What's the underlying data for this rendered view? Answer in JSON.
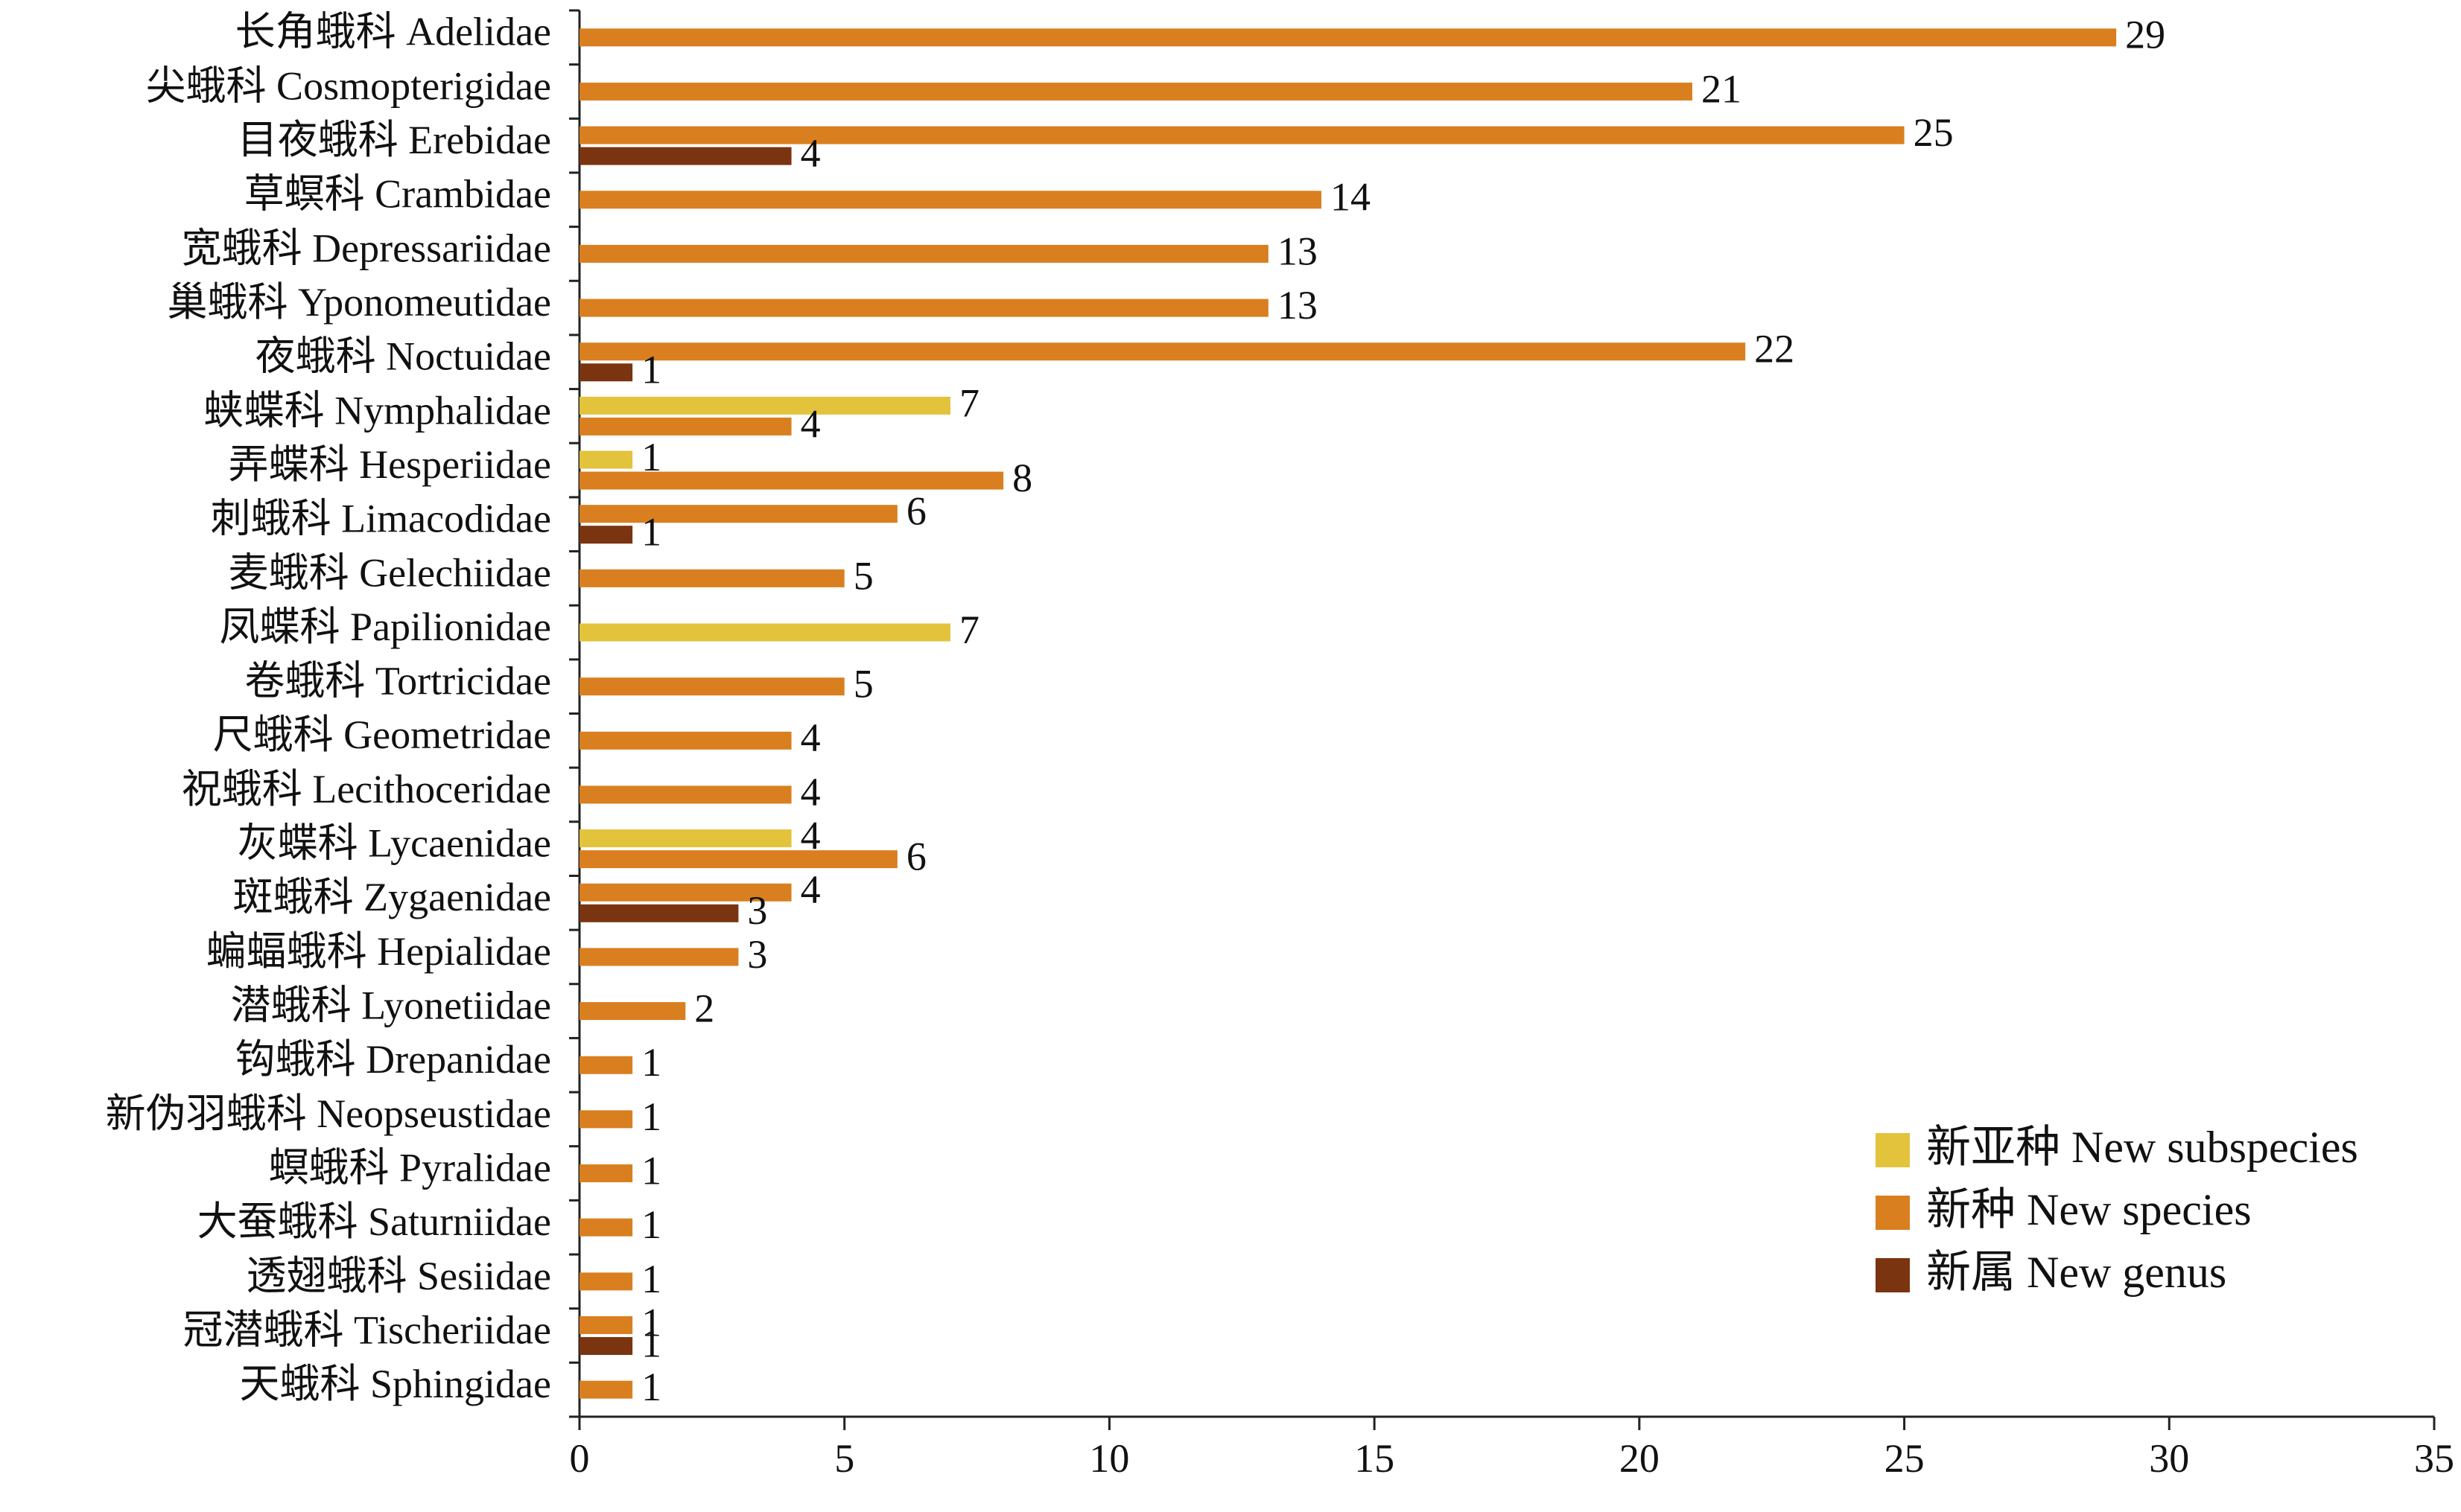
{
  "chart_data": {
    "type": "bar",
    "orientation": "horizontal",
    "title": "",
    "xlabel": "",
    "ylabel": "",
    "xlim": [
      0,
      35
    ],
    "xticks": [
      0,
      5,
      10,
      15,
      20,
      25,
      30,
      35
    ],
    "grid": false,
    "legend_position": "bottom-right",
    "categories": [
      "长角蛾科 Adelidae",
      "尖蛾科 Cosmopterigidae",
      "目夜蛾科 Erebidae",
      "草螟科 Crambidae",
      "宽蛾科 Depressariidae",
      "巢蛾科 Yponomeutidae",
      "夜蛾科 Noctuidae",
      "蛱蝶科 Nymphalidae",
      "弄蝶科 Hesperiidae",
      "刺蛾科 Limacodidae",
      "麦蛾科 Gelechiidae",
      "凤蝶科 Papilionidae",
      "卷蛾科 Tortricidae",
      "尺蛾科 Geometridae",
      "祝蛾科 Lecithoceridae",
      "灰蝶科 Lycaenidae",
      "斑蛾科 Zygaenidae",
      "蝙蝠蛾科 Hepialidae",
      "潜蛾科 Lyonetiidae",
      "钩蛾科 Drepanidae",
      "新伪羽蛾科 Neopseustidae",
      "螟蛾科 Pyralidae",
      "大蚕蛾科 Saturniidae",
      "透翅蛾科 Sesiidae",
      "冠潜蛾科 Tischeriidae",
      "天蛾科 Sphingidae"
    ],
    "series": [
      {
        "name": "新亚种 New subspecies",
        "color": "#e3c33c",
        "values": [
          null,
          null,
          null,
          null,
          null,
          null,
          null,
          7,
          1,
          null,
          null,
          7,
          null,
          null,
          null,
          4,
          null,
          null,
          null,
          null,
          null,
          null,
          null,
          null,
          null,
          null
        ]
      },
      {
        "name": "新种 New species",
        "color": "#d97f1f",
        "values": [
          29,
          21,
          25,
          14,
          13,
          13,
          22,
          4,
          8,
          6,
          5,
          null,
          5,
          4,
          4,
          6,
          4,
          3,
          2,
          1,
          1,
          1,
          1,
          1,
          1,
          1
        ]
      },
      {
        "name": "新属 New genus",
        "color": "#7a3410",
        "values": [
          null,
          null,
          4,
          null,
          null,
          null,
          1,
          null,
          null,
          1,
          null,
          null,
          null,
          null,
          null,
          null,
          3,
          null,
          null,
          null,
          null,
          null,
          null,
          null,
          1,
          null
        ]
      }
    ]
  }
}
